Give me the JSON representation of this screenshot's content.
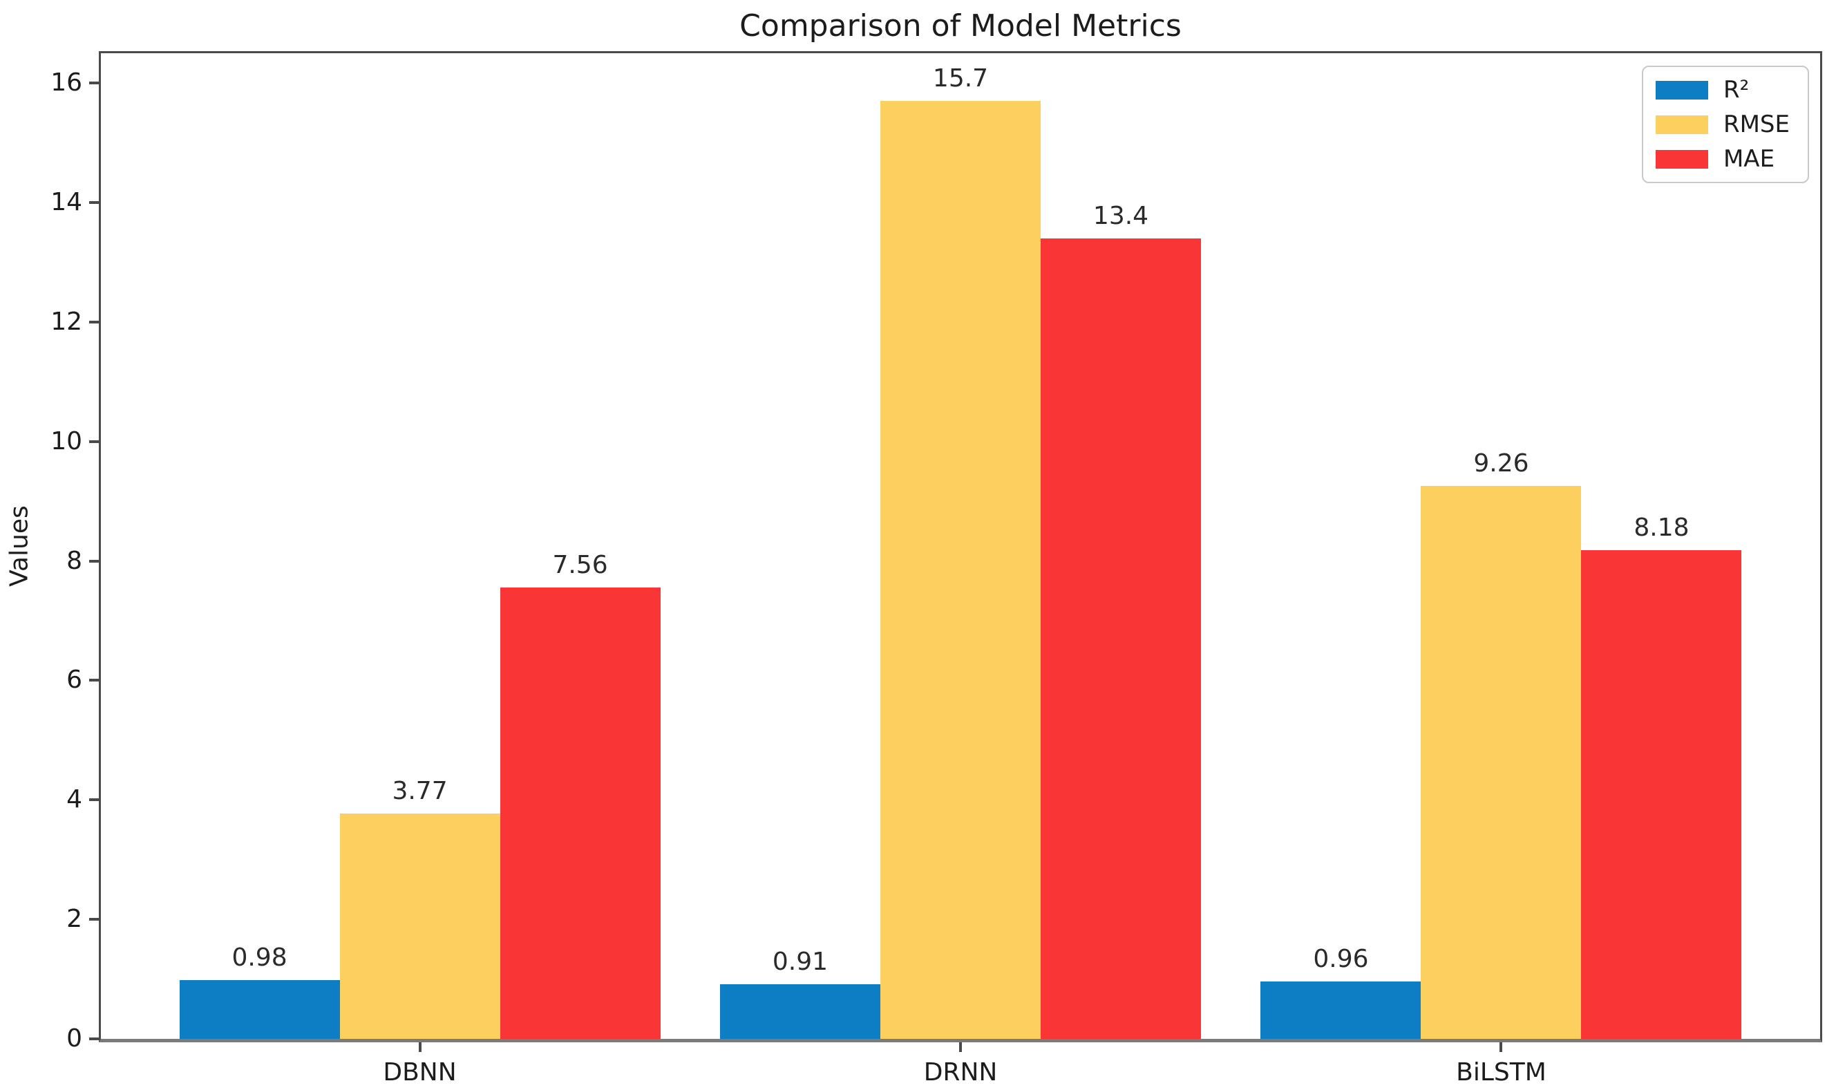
{
  "chart_data": {
    "type": "bar",
    "title": "Comparison of Model Metrics",
    "ylabel": "Values",
    "categories": [
      "DBNN",
      "DRNN",
      "BiLSTM"
    ],
    "series": [
      {
        "name": "R²",
        "color": "#0d7ec3",
        "values": [
          0.98,
          0.91,
          0.96
        ],
        "value_labels": [
          "0.98",
          "0.91",
          "0.96"
        ]
      },
      {
        "name": "RMSE",
        "color": "#fcd05e",
        "values": [
          3.77,
          15.7,
          9.26
        ],
        "value_labels": [
          "3.77",
          "15.7",
          "9.26"
        ]
      },
      {
        "name": "MAE",
        "color": "#f93535",
        "values": [
          7.56,
          13.4,
          8.18
        ],
        "value_labels": [
          "7.56",
          "13.4",
          "8.18"
        ]
      }
    ],
    "ylim": [
      0,
      16.5
    ],
    "yticks": [
      0,
      2,
      4,
      6,
      8,
      10,
      12,
      14,
      16
    ],
    "legend_position": "upper right",
    "grid": false,
    "bar_value_labels": true,
    "axis_color": "#4a4a4a"
  }
}
